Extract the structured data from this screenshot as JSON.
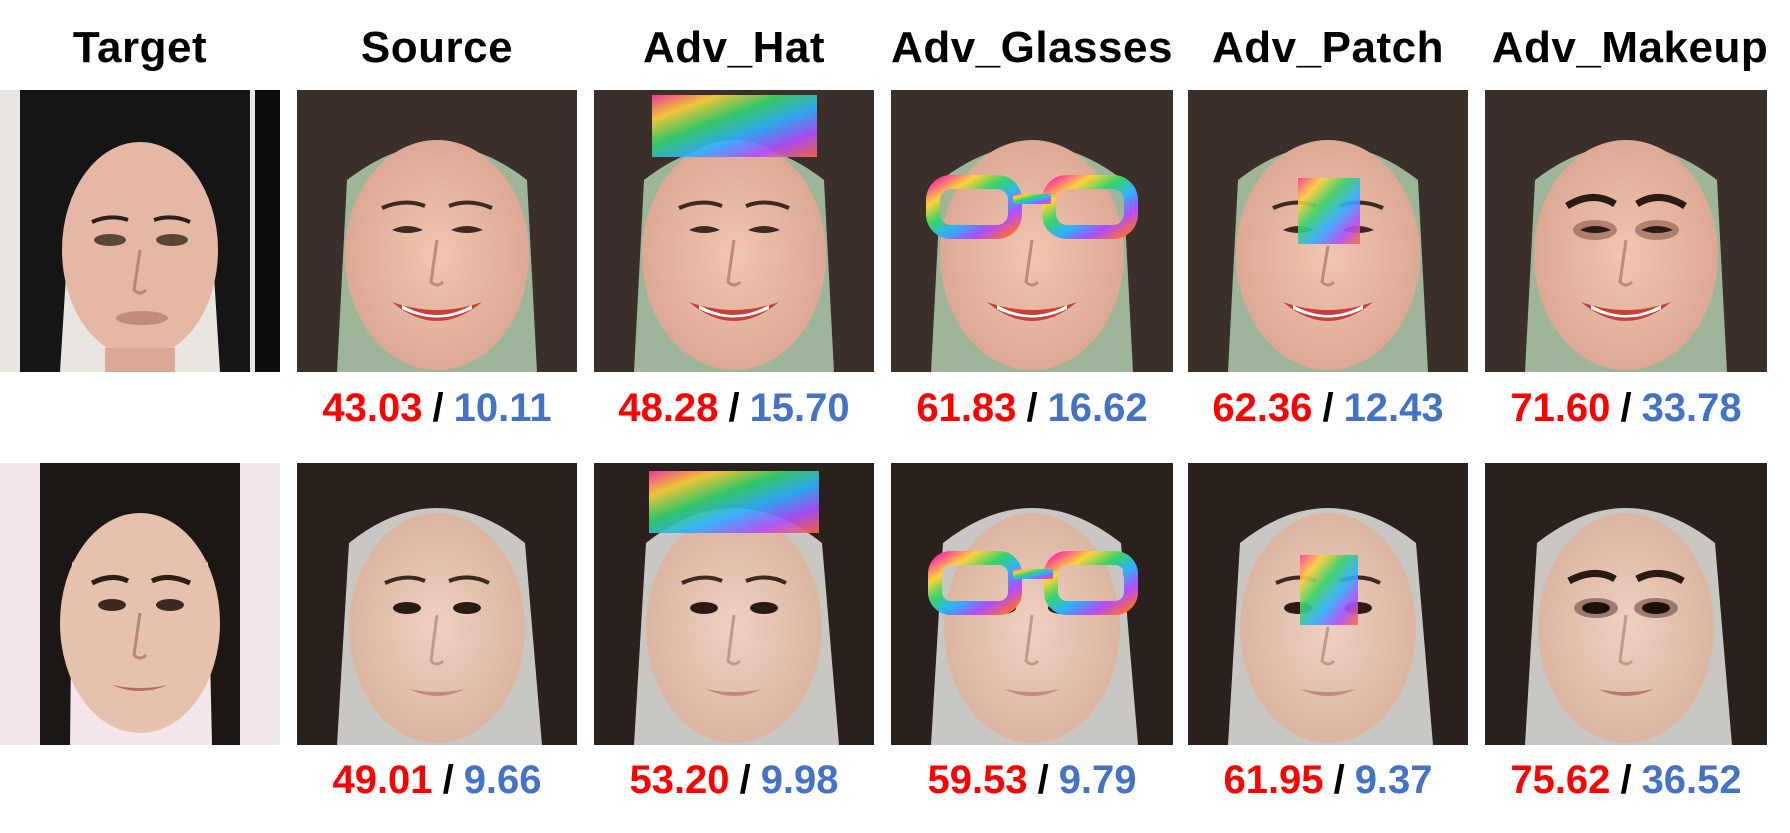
{
  "headers": [
    "Target",
    "Source",
    "Adv_Hat",
    "Adv_Glasses",
    "Adv_Patch",
    "Adv_Makeup"
  ],
  "separator": "/",
  "colors": {
    "score_red": "#ff0000",
    "score_blue": "#4472c4",
    "separator": "#000000"
  },
  "rows": [
    {
      "scores": [
        {
          "red": "43.03",
          "blue": "10.11"
        },
        {
          "red": "48.28",
          "blue": "15.70"
        },
        {
          "red": "61.83",
          "blue": "16.62"
        },
        {
          "red": "62.36",
          "blue": "12.43"
        },
        {
          "red": "71.60",
          "blue": "33.78"
        }
      ]
    },
    {
      "scores": [
        {
          "red": "49.01",
          "blue": "9.66"
        },
        {
          "red": "53.20",
          "blue": "9.98"
        },
        {
          "red": "59.53",
          "blue": "9.79"
        },
        {
          "red": "61.95",
          "blue": "9.37"
        },
        {
          "red": "75.62",
          "blue": "36.52"
        }
      ]
    }
  ]
}
